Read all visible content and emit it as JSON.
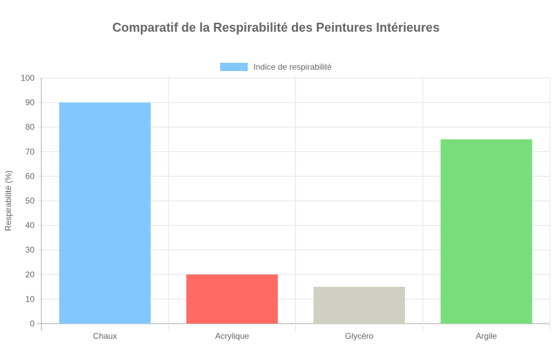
{
  "chart_data": {
    "type": "bar",
    "title": "Comparatif de la Respirabilité des Peintures Intérieures",
    "categories": [
      "Chaux",
      "Acrylique",
      "Glycéro",
      "Argile"
    ],
    "series": [
      {
        "name": "Indice de respirabilité",
        "values": [
          90,
          20,
          15,
          75
        ]
      }
    ],
    "colors": [
      "#82c8ff",
      "#ff6a63",
      "#cfcfc2",
      "#79de79"
    ],
    "xlabel": "",
    "ylabel": "Respirabilité (%)",
    "ylim": [
      0,
      100
    ],
    "yticks": [
      0,
      10,
      20,
      30,
      40,
      50,
      60,
      70,
      80,
      90,
      100
    ],
    "grid": true,
    "legend_position": "top"
  }
}
